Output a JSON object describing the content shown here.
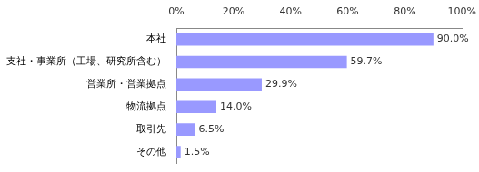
{
  "chart_data": {
    "type": "bar",
    "orientation": "horizontal",
    "categories": [
      "本社",
      "支社・事業所（工場、研究所含む）",
      "営業所・営業拠点",
      "物流拠点",
      "取引先",
      "その他"
    ],
    "values": [
      90.0,
      59.7,
      29.9,
      14.0,
      6.5,
      1.5
    ],
    "value_labels": [
      "90.0%",
      "59.7%",
      "29.9%",
      "14.0%",
      "6.5%",
      "1.5%"
    ],
    "color": "#9999ff",
    "xlim": [
      0,
      100
    ],
    "xticks": [
      {
        "value": 0,
        "label": "0%"
      },
      {
        "value": 20,
        "label": "20%"
      },
      {
        "value": 40,
        "label": "40%"
      },
      {
        "value": 60,
        "label": "60%"
      },
      {
        "value": 80,
        "label": "80%"
      },
      {
        "value": 100,
        "label": "100%"
      }
    ],
    "data_labels": true,
    "grid": false
  }
}
